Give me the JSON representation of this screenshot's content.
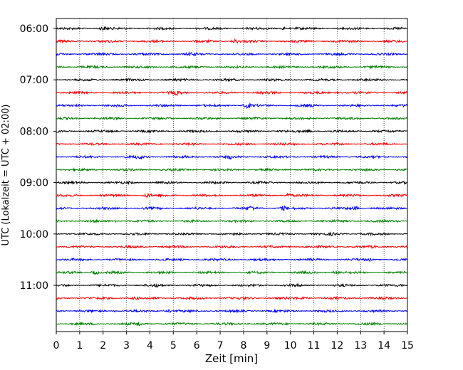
{
  "chart_data": {
    "type": "line",
    "title": "",
    "xlabel": "Zeit  [min]",
    "ylabel": "UTC (Lokalzeit = UTC + 02:00)",
    "x_ticks": [
      0,
      1,
      2,
      3,
      4,
      5,
      6,
      7,
      8,
      9,
      10,
      11,
      12,
      13,
      14,
      15
    ],
    "xlim": [
      0,
      15
    ],
    "y_tick_labels": [
      "06:00",
      "07:00",
      "08:00",
      "09:00",
      "10:00",
      "11:00"
    ],
    "grid": "vertical dotted lines at each minute",
    "trace_interval_minutes": 15,
    "trace_start_times": [
      "06:00",
      "06:15",
      "06:30",
      "06:45",
      "07:00",
      "07:15",
      "07:30",
      "07:45",
      "08:00",
      "08:15",
      "08:30",
      "08:45",
      "09:00",
      "09:15",
      "09:30",
      "09:45",
      "10:00",
      "10:15",
      "10:30",
      "10:45",
      "11:00",
      "11:15",
      "11:30",
      "11:45"
    ],
    "color_cycle": [
      "#000000",
      "#ff0000",
      "#0000ff",
      "#008000"
    ]
  }
}
